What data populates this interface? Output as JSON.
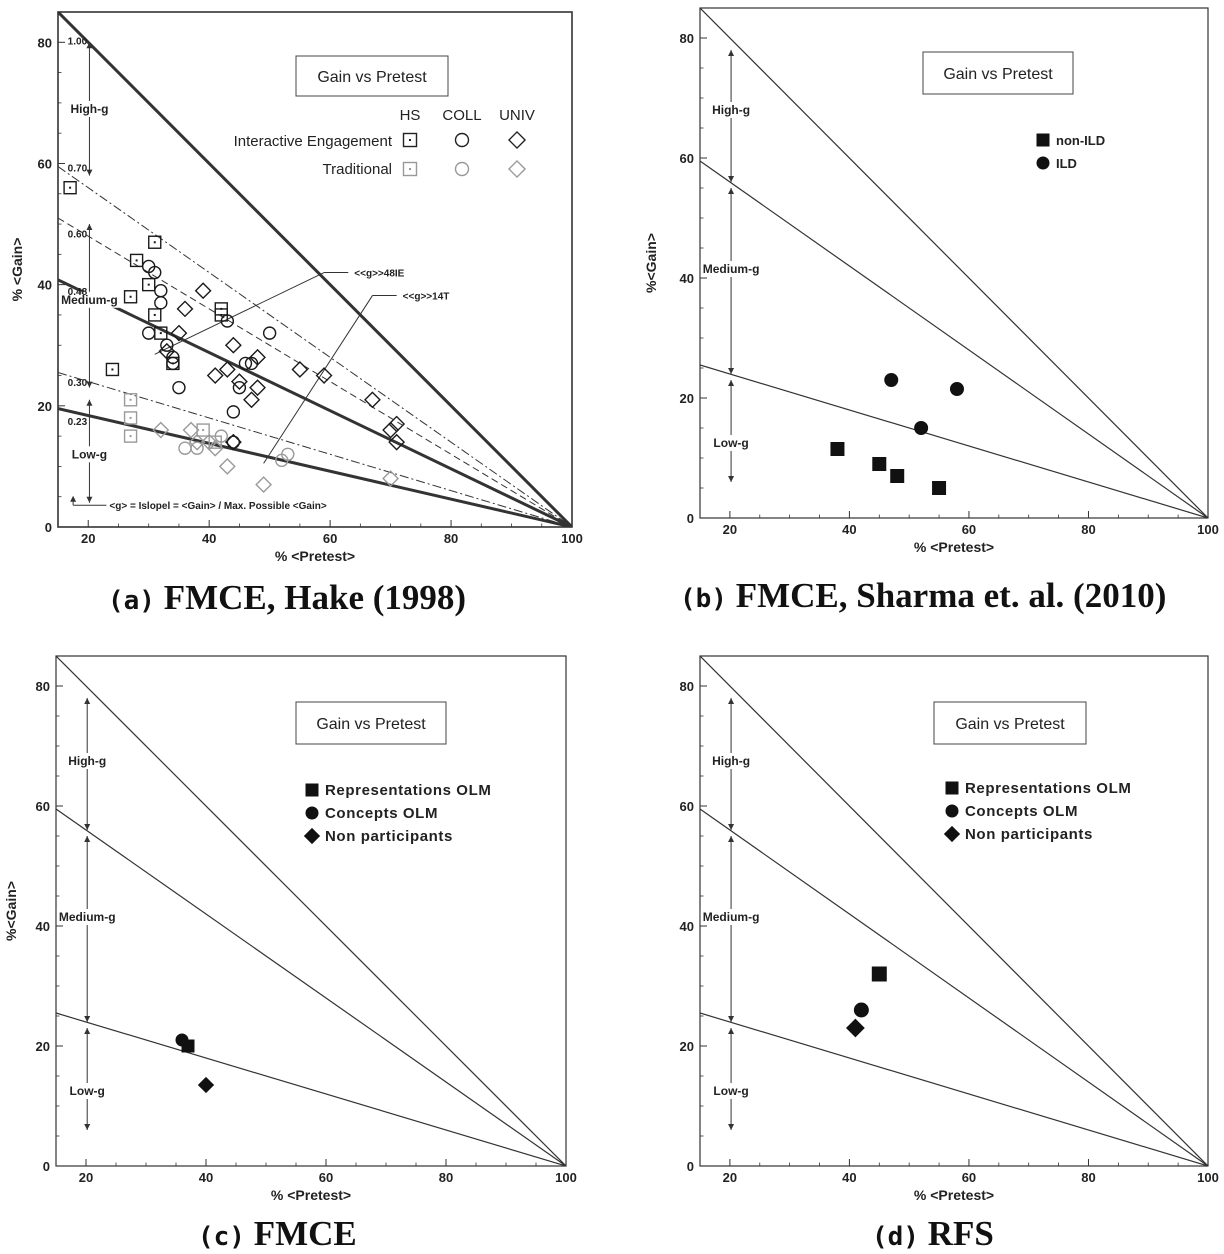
{
  "captions": {
    "a": {
      "tag": "(a)",
      "text": "FMCE, Hake (1998)"
    },
    "b": {
      "tag": "(b)",
      "text": "FMCE, Sharma et. al. (2010)"
    },
    "c": {
      "tag": "(c)",
      "text": "FMCE"
    },
    "d": {
      "tag": "(d)",
      "text": "RFS"
    }
  },
  "chart_data": [
    {
      "id": "a",
      "type": "scatter",
      "title": "Gain vs Pretest",
      "xlabel": "% <Pretest>",
      "ylabel": "% <Gain>",
      "xlim": [
        15,
        100
      ],
      "ylim": [
        0,
        85
      ],
      "x_ticks": [
        "20",
        "40",
        "60",
        "80",
        "100"
      ],
      "y_ticks": [
        "0",
        "20",
        "40",
        "60",
        "80"
      ],
      "bands": [
        "High-g",
        "Medium-g",
        "Low-g"
      ],
      "g_lines": [
        {
          "label": "1.00",
          "g": 1.0,
          "style": "bold"
        },
        {
          "label": "0.70",
          "g": 0.7,
          "style": "dashdot"
        },
        {
          "label": "0.60",
          "g": 0.6,
          "style": "dashed"
        },
        {
          "label": "0.48",
          "g": 0.48,
          "style": "bold"
        },
        {
          "label": "0.30",
          "g": 0.3,
          "style": "dashdot"
        },
        {
          "label": "0.23",
          "g": 0.23,
          "style": "bold"
        }
      ],
      "annotations": {
        "g48": "<<g>>48IE",
        "g14": "<<g>>14T",
        "slope": "<g> = Islopel = <Gain> / Max. Possible <Gain>"
      },
      "legend": {
        "headers": [
          "HS",
          "COLL",
          "UNIV"
        ],
        "rows": [
          "Interactive Engagement",
          "Traditional"
        ]
      },
      "series": [
        {
          "group": "Interactive Engagement",
          "level": "HS",
          "marker": "square",
          "points": [
            [
              17,
              56
            ],
            [
              31,
              47
            ],
            [
              28,
              44
            ],
            [
              27,
              38
            ],
            [
              30,
              40
            ],
            [
              31,
              35
            ],
            [
              32,
              32
            ],
            [
              42,
              36
            ],
            [
              42,
              35
            ],
            [
              24,
              26
            ],
            [
              34,
              27
            ]
          ]
        },
        {
          "group": "Interactive Engagement",
          "level": "COLL",
          "marker": "circle",
          "points": [
            [
              30,
              43
            ],
            [
              31,
              42
            ],
            [
              32,
              39
            ],
            [
              32,
              37
            ],
            [
              30,
              32
            ],
            [
              33,
              30
            ],
            [
              34,
              28
            ],
            [
              34,
              27
            ],
            [
              35,
              23
            ],
            [
              45,
              23
            ],
            [
              46,
              27
            ],
            [
              47,
              27
            ],
            [
              50,
              32
            ],
            [
              43,
              34
            ],
            [
              44,
              19
            ],
            [
              44,
              14
            ]
          ]
        },
        {
          "group": "Interactive Engagement",
          "level": "UNIV",
          "marker": "diamond",
          "points": [
            [
              39,
              39
            ],
            [
              36,
              36
            ],
            [
              35,
              32
            ],
            [
              33,
              29
            ],
            [
              41,
              25
            ],
            [
              44,
              30
            ],
            [
              43,
              26
            ],
            [
              45,
              24
            ],
            [
              47,
              21
            ],
            [
              48,
              23
            ],
            [
              48,
              28
            ],
            [
              55,
              26
            ],
            [
              59,
              25
            ],
            [
              67,
              21
            ],
            [
              71,
              17
            ],
            [
              71,
              14
            ],
            [
              70,
              16
            ],
            [
              44,
              14
            ]
          ]
        },
        {
          "group": "Traditional",
          "level": "HS",
          "marker": "square",
          "points": [
            [
              27,
              21
            ],
            [
              27,
              18
            ],
            [
              27,
              15
            ],
            [
              39,
              16
            ],
            [
              41,
              14
            ]
          ]
        },
        {
          "group": "Traditional",
          "level": "COLL",
          "marker": "circle",
          "points": [
            [
              36,
              13
            ],
            [
              38,
              13
            ],
            [
              42,
              15
            ],
            [
              52,
              11
            ],
            [
              53,
              12
            ]
          ]
        },
        {
          "group": "Traditional",
          "level": "UNIV",
          "marker": "diamond",
          "points": [
            [
              32,
              16
            ],
            [
              37,
              16
            ],
            [
              40,
              14
            ],
            [
              43,
              10
            ],
            [
              49,
              7
            ],
            [
              70,
              8
            ],
            [
              38,
              14
            ],
            [
              41,
              13
            ]
          ]
        }
      ]
    },
    {
      "id": "b",
      "type": "scatter",
      "title": "Gain vs Pretest",
      "xlabel": "% <Pretest>",
      "ylabel": "%<Gain>",
      "xlim": [
        15,
        100
      ],
      "ylim": [
        0,
        85
      ],
      "x_ticks": [
        "20",
        "40",
        "60",
        "80",
        "100"
      ],
      "y_ticks": [
        "0",
        "20",
        "40",
        "60",
        "80"
      ],
      "bands": [
        "High-g",
        "Medium-g",
        "Low-g"
      ],
      "g_lines": [
        1.0,
        0.7,
        0.3
      ],
      "series": [
        {
          "name": "non-ILD",
          "marker": "square",
          "points": [
            [
              38,
              11.5
            ],
            [
              45,
              9
            ],
            [
              48,
              7
            ],
            [
              55,
              5
            ]
          ]
        },
        {
          "name": "ILD",
          "marker": "circle",
          "points": [
            [
              47,
              23
            ],
            [
              58,
              21.5
            ],
            [
              52,
              15
            ]
          ]
        }
      ]
    },
    {
      "id": "c",
      "type": "scatter",
      "title": "Gain vs Pretest",
      "xlabel": "% <Pretest>",
      "ylabel": "%<Gain>",
      "xlim": [
        15,
        100
      ],
      "ylim": [
        0,
        85
      ],
      "x_ticks": [
        "20",
        "40",
        "60",
        "80",
        "100"
      ],
      "y_ticks": [
        "0",
        "20",
        "40",
        "60",
        "80"
      ],
      "bands": [
        "High-g",
        "Medium-g",
        "Low-g"
      ],
      "g_lines": [
        1.0,
        0.7,
        0.3
      ],
      "series": [
        {
          "name": "Representations OLM",
          "marker": "square",
          "points": [
            [
              37,
              20
            ]
          ]
        },
        {
          "name": "Concepts OLM",
          "marker": "circle",
          "points": [
            [
              36,
              21
            ]
          ]
        },
        {
          "name": "Non participants",
          "marker": "diamond",
          "points": [
            [
              40,
              13.5
            ]
          ]
        }
      ]
    },
    {
      "id": "d",
      "type": "scatter",
      "title": "Gain vs Pretest",
      "xlabel": "% <Pretest>",
      "ylabel": "",
      "xlim": [
        15,
        100
      ],
      "ylim": [
        0,
        85
      ],
      "x_ticks": [
        "20",
        "40",
        "60",
        "80",
        "100"
      ],
      "y_ticks": [
        "0",
        "20",
        "40",
        "60",
        "80"
      ],
      "bands": [
        "High-g",
        "Medium-g",
        "Low-g"
      ],
      "g_lines": [
        1.0,
        0.7,
        0.3
      ],
      "series": [
        {
          "name": "Representations OLM",
          "marker": "square",
          "points": [
            [
              45,
              32
            ]
          ]
        },
        {
          "name": "Concepts OLM",
          "marker": "circle",
          "points": [
            [
              42,
              26
            ]
          ]
        },
        {
          "name": "Non participants",
          "marker": "diamond",
          "points": [
            [
              41,
              23
            ]
          ]
        }
      ]
    }
  ]
}
